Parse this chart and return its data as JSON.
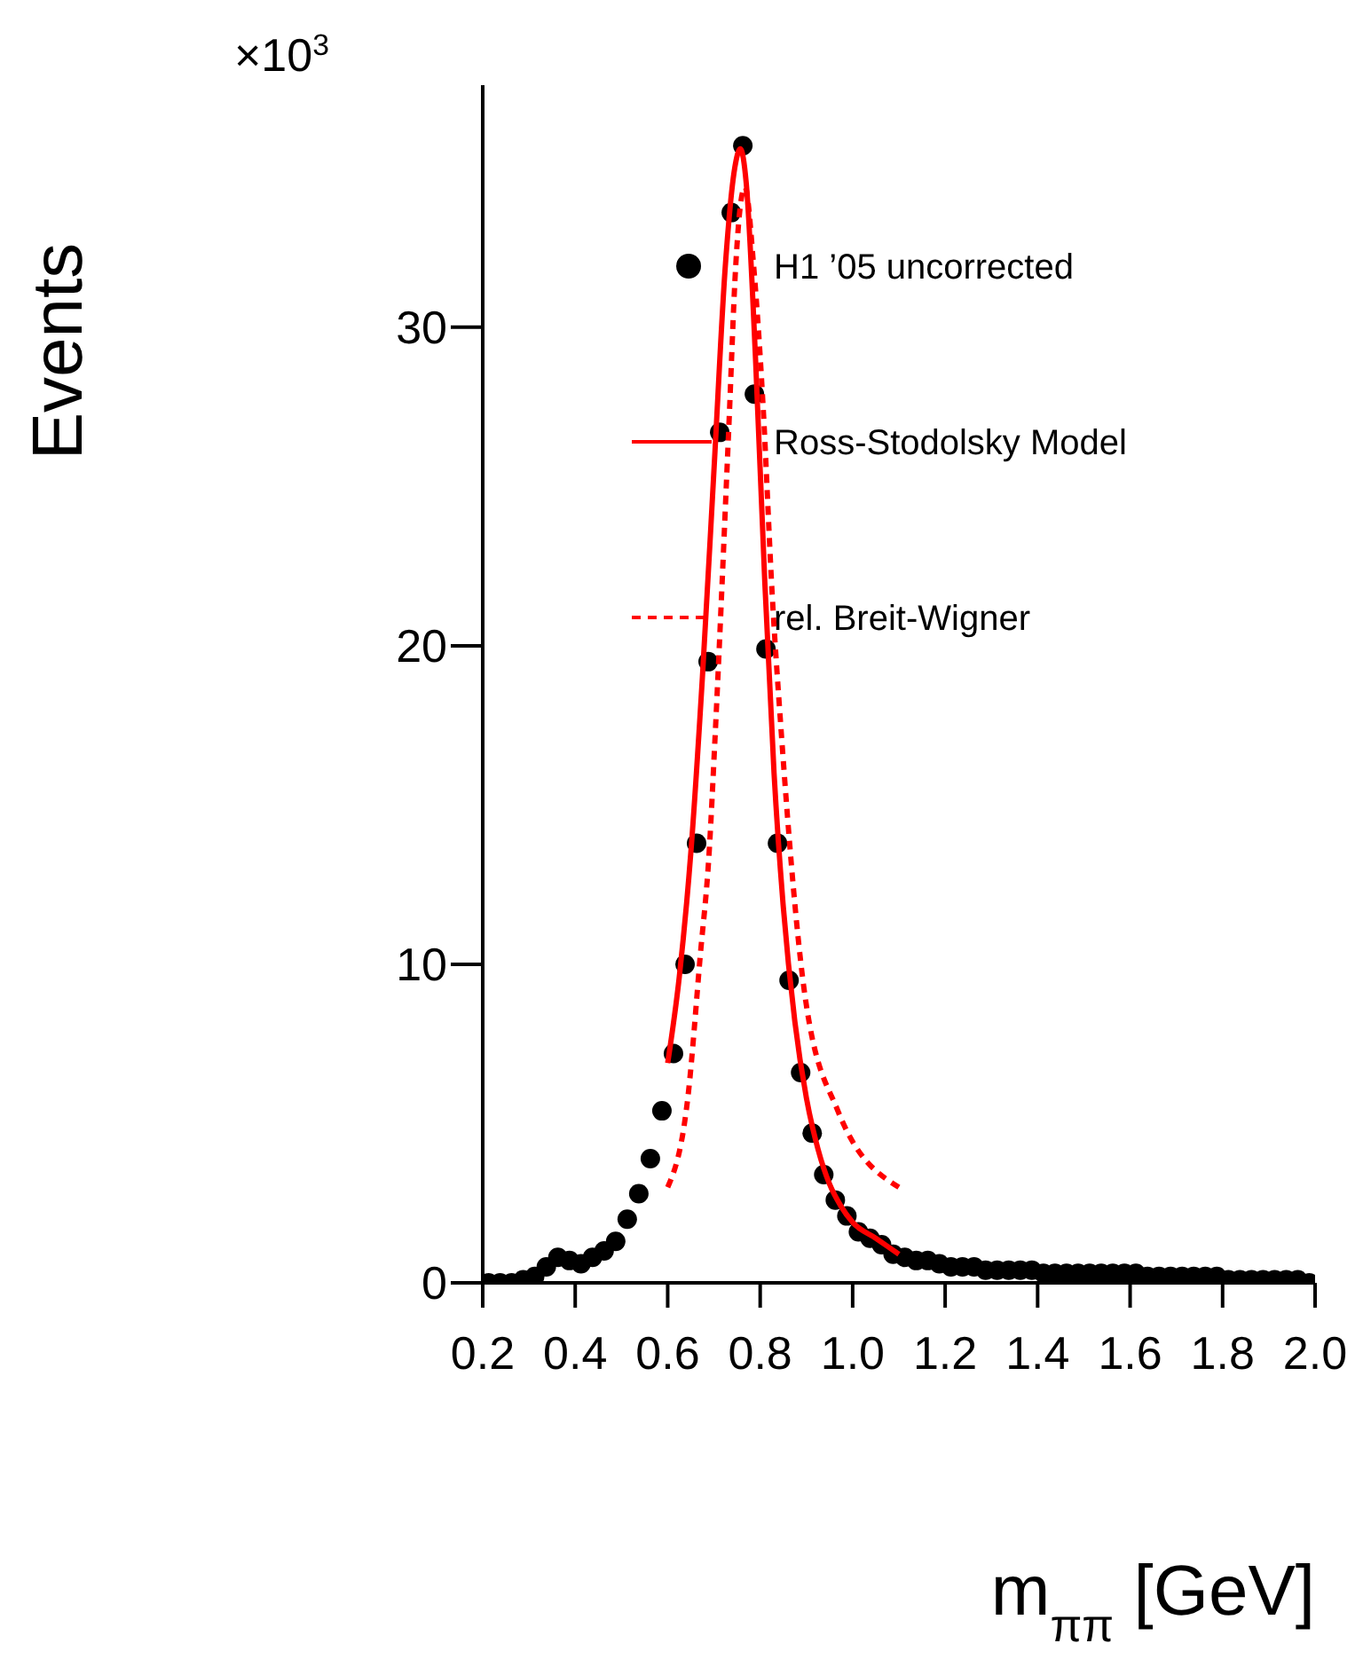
{
  "chart_data": {
    "type": "scatter",
    "xlabel": "m$_{ππ}$ [GeV]",
    "ylabel": "Events",
    "annotations": [
      "×10$^{3}$"
    ],
    "xlim": [
      0.2,
      2.0
    ],
    "xticks": [
      0.2,
      0.4,
      0.6,
      0.8,
      {
        "value": 1,
        "label": "1.0"
      },
      1.2,
      1.4,
      1.6,
      1.8,
      {
        "value": 2,
        "label": "2.0"
      }
    ],
    "ylim": [
      0,
      37.6
    ],
    "yticks": [
      0,
      10,
      20,
      30
    ],
    "legend": "top right",
    "series": [
      {
        "name": "H1 ’05 uncorrected",
        "marker": "circle",
        "color": "#000000",
        "x": [
          0.2125,
          0.2375,
          0.2625,
          0.2875,
          0.3125,
          0.3375,
          0.3625,
          0.3875,
          0.4125,
          0.4375,
          0.4625,
          0.4875,
          0.5125,
          0.5375,
          0.5625,
          0.5875,
          0.6125,
          0.6375,
          0.6625,
          0.6875,
          0.7125,
          0.7375,
          0.7625,
          0.7875,
          0.8125,
          0.8375,
          0.8625,
          0.8875,
          0.9125,
          0.9375,
          0.9625,
          0.9875,
          1.0125,
          1.0375,
          1.0625,
          1.0875,
          1.1125,
          1.1375,
          1.1625,
          1.1875,
          1.2125,
          1.2375,
          1.2625,
          1.2875,
          1.3125,
          1.3375,
          1.3625,
          1.3875,
          1.4125,
          1.4375,
          1.4625,
          1.4875,
          1.5125,
          1.5375,
          1.5625,
          1.5875,
          1.6125,
          1.6375,
          1.6625,
          1.6875,
          1.7125,
          1.7375,
          1.7625,
          1.7875,
          1.8125,
          1.8375,
          1.8625,
          1.8875,
          1.9125,
          1.9375,
          1.9625,
          1.9875
        ],
        "values": [
          0.0,
          0.0,
          0.0,
          0.1,
          0.2,
          0.5,
          0.8,
          0.7,
          0.6,
          0.8,
          1.0,
          1.3,
          2.0,
          2.8,
          3.9,
          5.4,
          7.2,
          10.0,
          13.8,
          19.5,
          26.7,
          33.6,
          35.7,
          27.9,
          19.9,
          13.8,
          9.5,
          6.6,
          4.7,
          3.4,
          2.6,
          2.1,
          1.6,
          1.4,
          1.2,
          0.9,
          0.8,
          0.7,
          0.7,
          0.6,
          0.5,
          0.5,
          0.5,
          0.4,
          0.4,
          0.4,
          0.4,
          0.4,
          0.3,
          0.3,
          0.3,
          0.3,
          0.3,
          0.3,
          0.3,
          0.3,
          0.3,
          0.2,
          0.2,
          0.2,
          0.2,
          0.2,
          0.2,
          0.2,
          0.1,
          0.1,
          0.1,
          0.1,
          0.1,
          0.1,
          0.1,
          0.0
        ]
      },
      {
        "name": "Ross-Stodolsky Model",
        "type": "line",
        "line_style": "solid",
        "color": "#ff0000",
        "x": [
          0.6,
          0.625,
          0.65,
          0.675,
          0.7,
          0.725,
          0.745,
          0.757,
          0.77,
          0.79,
          0.81,
          0.83,
          0.85,
          0.875,
          0.9,
          0.925,
          0.95,
          0.975,
          1.0,
          1.05,
          1.1
        ],
        "values": [
          6.9,
          9.6,
          13.5,
          19.0,
          25.5,
          32.0,
          35.0,
          35.6,
          34.5,
          29.0,
          22.0,
          16.0,
          11.8,
          8.2,
          5.8,
          4.2,
          3.1,
          2.4,
          1.9,
          1.4,
          0.9
        ]
      },
      {
        "name": "rel. Breit-Wigner",
        "type": "line",
        "line_style": "dotted",
        "color": "#ff0000",
        "x": [
          0.6,
          0.645,
          0.67,
          0.69,
          0.702,
          0.732,
          0.747,
          0.757,
          0.767,
          0.786,
          0.806,
          0.826,
          0.845,
          0.898,
          0.968,
          1.1
        ],
        "values": [
          3.0,
          6.0,
          10.2,
          13.6,
          17.0,
          26.8,
          31.9,
          33.8,
          34.4,
          31.9,
          27.6,
          21.6,
          17.4,
          8.9,
          5.4,
          3.0
        ]
      }
    ]
  }
}
